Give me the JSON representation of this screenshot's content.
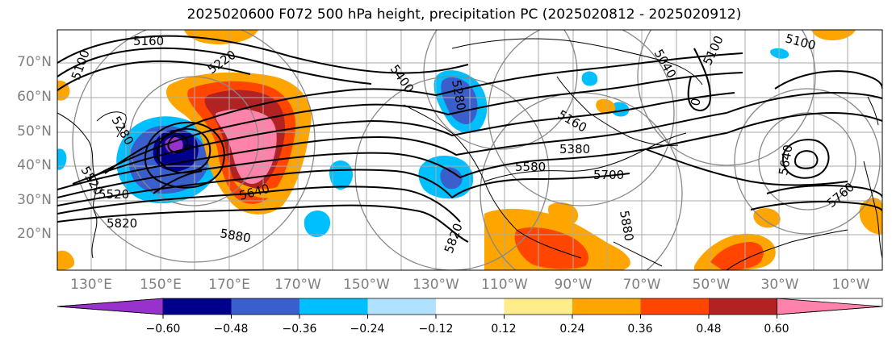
{
  "title": "2025020600 F072 500 hPa height, precipitation PC (2025020812 - 2025020912)",
  "lat_labels": [
    "70°N",
    "60°N",
    "50°N",
    "40°N",
    "30°N",
    "20°N"
  ],
  "lon_labels": [
    "130°E",
    "150°E",
    "170°E",
    "170°W",
    "150°W",
    "130°W",
    "110°W",
    "90°W",
    "70°W",
    "50°W",
    "30°W",
    "10°W"
  ],
  "contour_labels": [
    "5160",
    "5100",
    "5220",
    "5280",
    "5400",
    "5520",
    "5520",
    "5640",
    "5700",
    "5580",
    "5820",
    "5880",
    "5820",
    "5880",
    "5640",
    "5760",
    "5100",
    "5040",
    "5100",
    "5160",
    "5280",
    "5380",
    "0",
    "5"
  ],
  "colorbar": {
    "ticks": [
      "−0.60",
      "−0.48",
      "−0.36",
      "−0.24",
      "−0.12",
      "0.12",
      "0.24",
      "0.36",
      "0.48",
      "0.60"
    ],
    "colors": [
      "#9932cc",
      "#00008b",
      "#3a5fcd",
      "#00bfff",
      "#b0e2ff",
      "#ffffff",
      "#ffec8b",
      "#ffa500",
      "#ff4500",
      "#b22222",
      "#ff82ab"
    ]
  }
}
